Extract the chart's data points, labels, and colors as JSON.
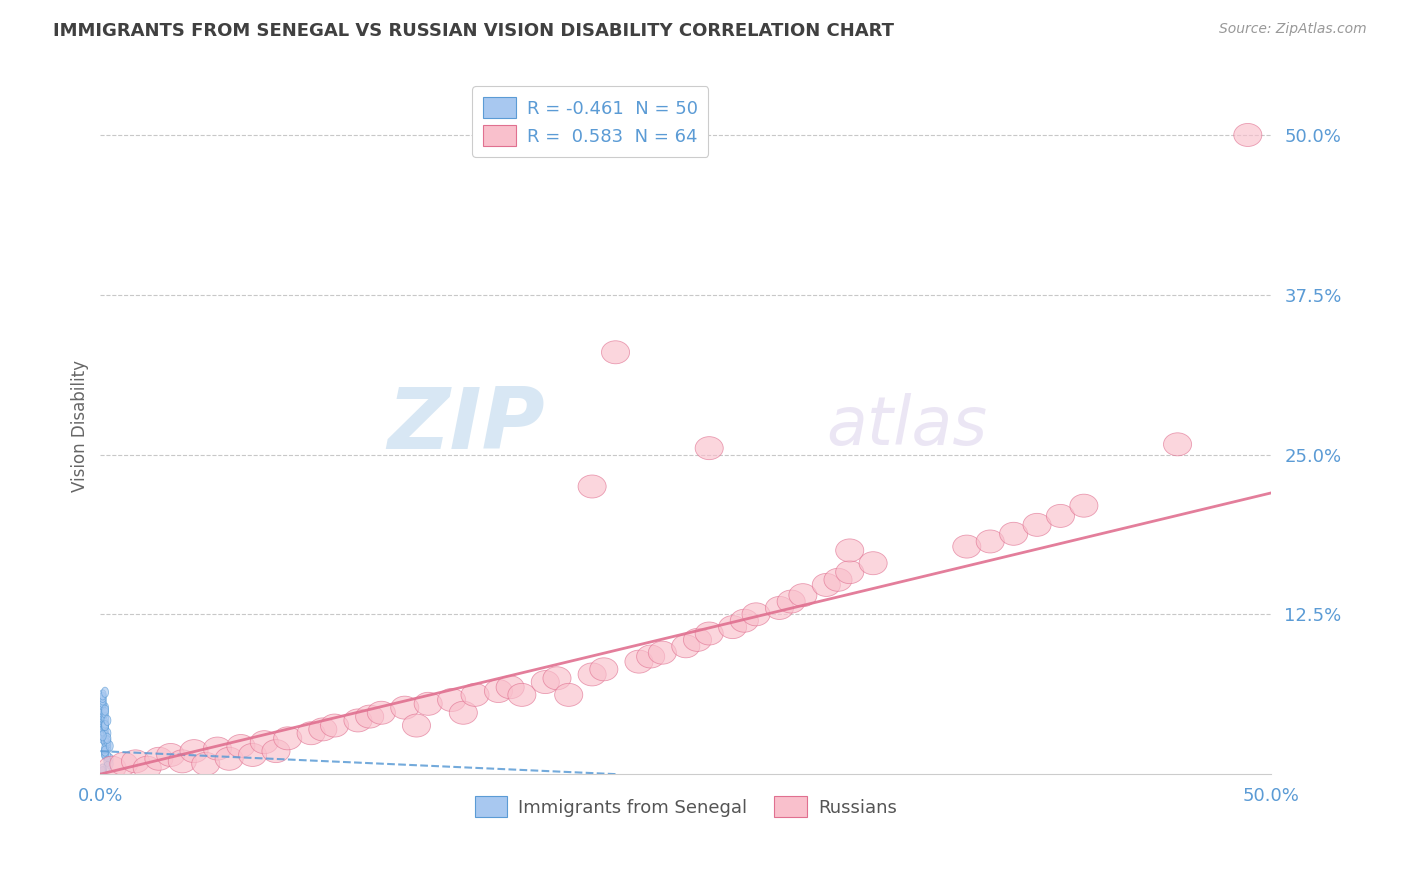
{
  "title": "IMMIGRANTS FROM SENEGAL VS RUSSIAN VISION DISABILITY CORRELATION CHART",
  "source": "Source: ZipAtlas.com",
  "ylabel": "Vision Disability",
  "xlim": [
    0.0,
    0.5
  ],
  "ylim": [
    0.0,
    0.545
  ],
  "yticks": [
    0.125,
    0.25,
    0.375,
    0.5
  ],
  "ytick_labels": [
    "12.5%",
    "25.0%",
    "37.5%",
    "50.0%"
  ],
  "xticks": [
    0.0,
    0.5
  ],
  "xtick_labels": [
    "0.0%",
    "50.0%"
  ],
  "color_blue_fill": "#a8c8f0",
  "color_blue_edge": "#5b9bd5",
  "color_pink_fill": "#f9c0cc",
  "color_pink_edge": "#e07090",
  "color_blue_line": "#5b9bd5",
  "color_pink_line": "#e07090",
  "color_title": "#404040",
  "color_axis_ticks": "#5b9bd5",
  "color_grid": "#c8c8c8",
  "watermark_color": "#c8dff0",
  "background": "#ffffff",
  "legend1_label": "R = -0.461  N = 50",
  "legend2_label": "R =  0.583  N = 64",
  "bottom_legend1": "Immigrants from Senegal",
  "bottom_legend2": "Russians",
  "senegal_x": [
    0.001,
    0.002,
    0.003,
    0.001,
    0.002,
    0.001,
    0.003,
    0.002,
    0.001,
    0.004,
    0.002,
    0.001,
    0.003,
    0.002,
    0.001,
    0.002,
    0.001,
    0.003,
    0.002,
    0.001,
    0.004,
    0.002,
    0.001,
    0.003,
    0.002,
    0.001,
    0.002,
    0.003,
    0.001,
    0.002,
    0.001,
    0.003,
    0.002,
    0.001,
    0.002,
    0.001,
    0.003,
    0.002,
    0.001,
    0.004,
    0.002,
    0.001,
    0.003,
    0.002,
    0.001,
    0.002,
    0.001,
    0.003,
    0.002,
    0.001
  ],
  "senegal_y": [
    0.03,
    0.025,
    0.02,
    0.035,
    0.015,
    0.028,
    0.022,
    0.018,
    0.04,
    0.012,
    0.032,
    0.038,
    0.024,
    0.03,
    0.042,
    0.026,
    0.034,
    0.014,
    0.036,
    0.044,
    0.008,
    0.016,
    0.046,
    0.01,
    0.038,
    0.048,
    0.02,
    0.006,
    0.05,
    0.04,
    0.002,
    0.032,
    0.052,
    0.004,
    0.044,
    0.054,
    0.026,
    0.018,
    0.056,
    0.022,
    0.048,
    0.058,
    0.028,
    0.05,
    0.06,
    0.038,
    0.062,
    0.042,
    0.064,
    0.03
  ],
  "senegal_ew": [
    0.003,
    0.003,
    0.003,
    0.003,
    0.003,
    0.003,
    0.003,
    0.003,
    0.003,
    0.003,
    0.003,
    0.003,
    0.003,
    0.003,
    0.003,
    0.003,
    0.003,
    0.003,
    0.003,
    0.003,
    0.003,
    0.003,
    0.003,
    0.003,
    0.003,
    0.003,
    0.003,
    0.003,
    0.003,
    0.003,
    0.003,
    0.003,
    0.003,
    0.003,
    0.003,
    0.003,
    0.003,
    0.003,
    0.003,
    0.003,
    0.003,
    0.003,
    0.003,
    0.003,
    0.003,
    0.003,
    0.003,
    0.003,
    0.003,
    0.003
  ],
  "senegal_eh": [
    0.008,
    0.008,
    0.008,
    0.008,
    0.008,
    0.008,
    0.008,
    0.008,
    0.008,
    0.008,
    0.008,
    0.008,
    0.008,
    0.008,
    0.008,
    0.008,
    0.008,
    0.008,
    0.008,
    0.008,
    0.008,
    0.008,
    0.008,
    0.008,
    0.008,
    0.008,
    0.008,
    0.008,
    0.008,
    0.008,
    0.008,
    0.008,
    0.008,
    0.008,
    0.008,
    0.008,
    0.008,
    0.008,
    0.008,
    0.008,
    0.008,
    0.008,
    0.008,
    0.008,
    0.008,
    0.008,
    0.008,
    0.008,
    0.008,
    0.008
  ],
  "russian_x": [
    0.005,
    0.01,
    0.015,
    0.02,
    0.025,
    0.03,
    0.035,
    0.04,
    0.045,
    0.05,
    0.055,
    0.06,
    0.065,
    0.07,
    0.075,
    0.08,
    0.09,
    0.095,
    0.1,
    0.11,
    0.115,
    0.12,
    0.13,
    0.135,
    0.14,
    0.15,
    0.155,
    0.16,
    0.17,
    0.175,
    0.18,
    0.19,
    0.195,
    0.2,
    0.21,
    0.215,
    0.22,
    0.23,
    0.235,
    0.24,
    0.25,
    0.255,
    0.26,
    0.27,
    0.275,
    0.28,
    0.29,
    0.295,
    0.3,
    0.31,
    0.315,
    0.32,
    0.33,
    0.37,
    0.38,
    0.39,
    0.4,
    0.41,
    0.42,
    0.46,
    0.32,
    0.26,
    0.21,
    0.49
  ],
  "russian_y": [
    0.005,
    0.008,
    0.01,
    0.005,
    0.012,
    0.015,
    0.01,
    0.018,
    0.008,
    0.02,
    0.012,
    0.022,
    0.015,
    0.025,
    0.018,
    0.028,
    0.032,
    0.035,
    0.038,
    0.042,
    0.045,
    0.048,
    0.052,
    0.038,
    0.055,
    0.058,
    0.048,
    0.062,
    0.065,
    0.068,
    0.062,
    0.072,
    0.075,
    0.062,
    0.078,
    0.082,
    0.33,
    0.088,
    0.092,
    0.095,
    0.1,
    0.105,
    0.11,
    0.115,
    0.12,
    0.125,
    0.13,
    0.135,
    0.14,
    0.148,
    0.152,
    0.158,
    0.165,
    0.178,
    0.182,
    0.188,
    0.195,
    0.202,
    0.21,
    0.258,
    0.175,
    0.255,
    0.225,
    0.5
  ],
  "russian_ew": [
    0.012,
    0.012,
    0.012,
    0.012,
    0.012,
    0.012,
    0.012,
    0.012,
    0.012,
    0.012,
    0.012,
    0.012,
    0.012,
    0.012,
    0.012,
    0.012,
    0.012,
    0.012,
    0.012,
    0.012,
    0.012,
    0.012,
    0.012,
    0.012,
    0.012,
    0.012,
    0.012,
    0.012,
    0.012,
    0.012,
    0.012,
    0.012,
    0.012,
    0.012,
    0.012,
    0.012,
    0.012,
    0.012,
    0.012,
    0.012,
    0.012,
    0.012,
    0.012,
    0.012,
    0.012,
    0.012,
    0.012,
    0.012,
    0.012,
    0.012,
    0.012,
    0.012,
    0.012,
    0.012,
    0.012,
    0.012,
    0.012,
    0.012,
    0.012,
    0.012,
    0.012,
    0.012,
    0.012,
    0.012
  ],
  "russian_eh": [
    0.018,
    0.018,
    0.018,
    0.018,
    0.018,
    0.018,
    0.018,
    0.018,
    0.018,
    0.018,
    0.018,
    0.018,
    0.018,
    0.018,
    0.018,
    0.018,
    0.018,
    0.018,
    0.018,
    0.018,
    0.018,
    0.018,
    0.018,
    0.018,
    0.018,
    0.018,
    0.018,
    0.018,
    0.018,
    0.018,
    0.018,
    0.018,
    0.018,
    0.018,
    0.018,
    0.018,
    0.018,
    0.018,
    0.018,
    0.018,
    0.018,
    0.018,
    0.018,
    0.018,
    0.018,
    0.018,
    0.018,
    0.018,
    0.018,
    0.018,
    0.018,
    0.018,
    0.018,
    0.018,
    0.018,
    0.018,
    0.018,
    0.018,
    0.018,
    0.018,
    0.018,
    0.018,
    0.018,
    0.018
  ],
  "blue_line_x": [
    0.0,
    0.22
  ],
  "blue_line_y": [
    0.018,
    0.0
  ],
  "pink_line_x": [
    0.0,
    0.5
  ],
  "pink_line_y": [
    0.0,
    0.22
  ]
}
